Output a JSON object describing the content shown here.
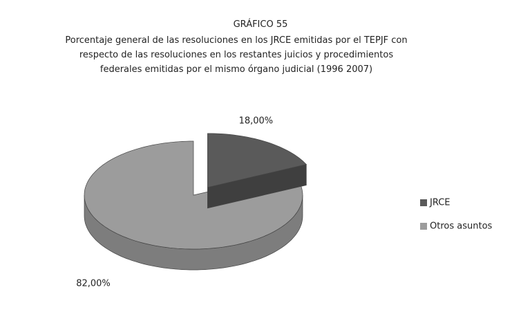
{
  "chart_data": {
    "type": "pie",
    "title": "GRÁFICO 55",
    "subtitle": "Porcentaje general de las resoluciones en los JRCE emitidas por el TEPJF con respecto de las resoluciones en los restantes juicios y procedimientos federales emitidas por el mismo órgano judicial (1996 2007)",
    "categories": [
      "JRCE",
      "Otros asuntos"
    ],
    "values": [
      18,
      82
    ],
    "value_labels": [
      "18,00%",
      "82,00%"
    ],
    "colors": [
      "#5a5a5a",
      "#9c9c9c"
    ],
    "legend": "right"
  }
}
